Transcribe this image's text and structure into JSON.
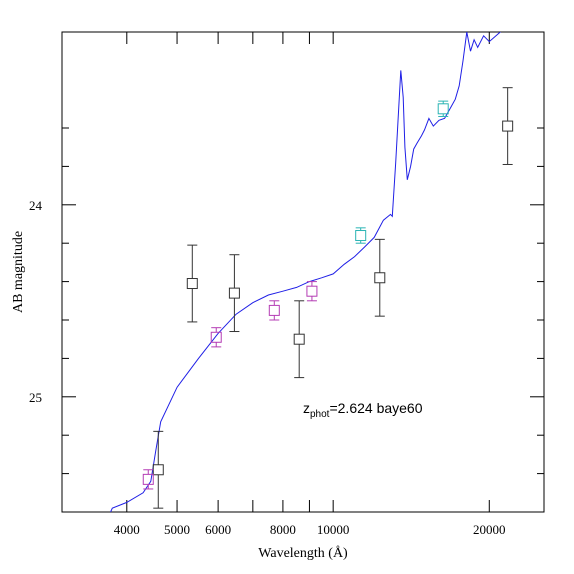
{
  "chart_data": {
    "type": "scatter",
    "xlabel": "Wavelength (Å)",
    "ylabel": "AB magnitude",
    "xscale": "log",
    "xlim": [
      3000,
      25500
    ],
    "ylim": [
      25.6,
      23.1
    ],
    "x_ticks": [
      {
        "value": 4000,
        "label": "4000"
      },
      {
        "value": 5000,
        "label": "5000"
      },
      {
        "value": 6000,
        "label": "6000"
      },
      {
        "value": 8000,
        "label": "8000"
      },
      {
        "value": 10000,
        "label": "10000"
      },
      {
        "value": 20000,
        "label": "20000"
      }
    ],
    "x_minor_ticks": [
      3000,
      7000,
      9000
    ],
    "y_ticks": [
      {
        "value": 24,
        "label": "24"
      },
      {
        "value": 25,
        "label": "25"
      }
    ],
    "y_minor_ticks": [
      23.6,
      23.8,
      24.2,
      24.4,
      24.6,
      24.8,
      25.2,
      25.4
    ],
    "annotation": {
      "prefix": "z",
      "subscript": "phot",
      "text": "=2.624 baye60",
      "color": "#1f1fe6"
    },
    "colors": {
      "model": "#1f1fe6",
      "black": "#333333",
      "magenta": "#b43cb4",
      "cyan": "#2ab4b4"
    },
    "model_sed": {
      "name": "baye60",
      "color": "#1f1fe6",
      "x": [
        3650,
        3750,
        4000,
        4300,
        4450,
        4550,
        4650,
        5000,
        5500,
        6000,
        6500,
        7000,
        7500,
        8000,
        8500,
        9000,
        9500,
        10000,
        10500,
        11000,
        11500,
        12000,
        12500,
        12900,
        13000,
        13200,
        13500,
        13650,
        13750,
        13900,
        14100,
        14300,
        14500,
        14800,
        15000,
        15300,
        15600,
        16000,
        16400,
        16800,
        17200,
        17500,
        17800,
        18100,
        18400,
        18700,
        19000,
        19500,
        20000,
        21000,
        22500,
        23500
      ],
      "y": [
        25.65,
        25.58,
        25.55,
        25.5,
        25.44,
        25.28,
        25.13,
        24.95,
        24.8,
        24.67,
        24.57,
        24.51,
        24.47,
        24.45,
        24.43,
        24.4,
        24.38,
        24.36,
        24.31,
        24.27,
        24.22,
        24.17,
        24.08,
        24.05,
        24.06,
        23.78,
        23.3,
        23.44,
        23.7,
        23.87,
        23.8,
        23.71,
        23.68,
        23.64,
        23.61,
        23.55,
        23.59,
        23.56,
        23.55,
        23.5,
        23.45,
        23.38,
        23.25,
        23.1,
        23.2,
        23.14,
        23.18,
        23.12,
        23.15,
        23.1,
        23.04,
        23.0
      ]
    },
    "series": [
      {
        "name": "",
        "color": "#333333",
        "x": [
          4600,
          5350,
          6450,
          8600,
          12300,
          21700
        ],
        "y": [
          25.38,
          24.41,
          24.46,
          24.7,
          24.38,
          23.59
        ],
        "err": [
          0.2,
          0.2,
          0.2,
          0.2,
          0.2,
          0.2
        ]
      },
      {
        "name": "",
        "color": "#b43cb4",
        "x": [
          4400,
          5950,
          7700,
          9100
        ],
        "y": [
          25.43,
          24.69,
          24.55,
          24.45
        ],
        "err": [
          0.05,
          0.05,
          0.05,
          0.05
        ]
      },
      {
        "name": "",
        "color": "#2ab4b4",
        "x": [
          11300,
          16300
        ],
        "y": [
          24.16,
          23.5
        ],
        "err": [
          0.04,
          0.04
        ]
      }
    ]
  }
}
